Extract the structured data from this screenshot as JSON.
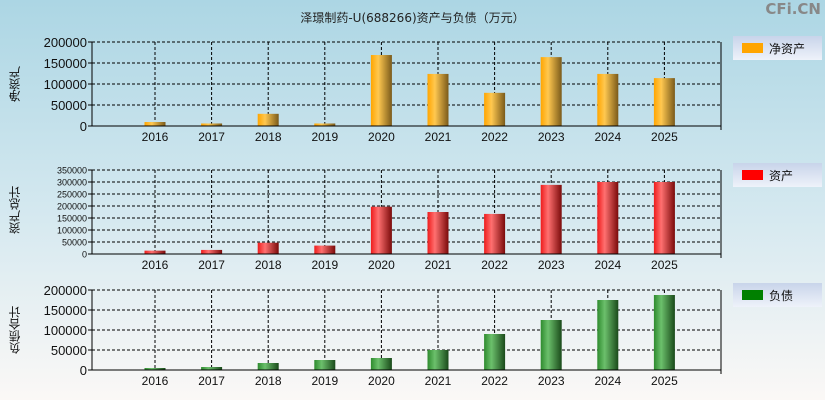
{
  "title": "泽璟制药-U(688266)资产与负债（万元）",
  "watermark": "CFi.CN",
  "chart_data": [
    {
      "type": "bar",
      "ylabel": "净资产",
      "legend": "净资产",
      "color": "#ffa500",
      "categories": [
        "2016",
        "2017",
        "2018",
        "2019",
        "2020",
        "2021",
        "2022",
        "2023",
        "2024",
        "2025"
      ],
      "values": [
        9500,
        6000,
        29000,
        6000,
        169000,
        124000,
        79000,
        164000,
        124000,
        114000
      ],
      "ylim": [
        0,
        200000
      ],
      "yticks": [
        "0",
        "50000",
        "100000",
        "150000",
        "200000"
      ],
      "grid": true,
      "legend_position": "right"
    },
    {
      "type": "bar",
      "ylabel": "资产总计",
      "legend": "资产",
      "color": "#ff0000",
      "categories": [
        "2016",
        "2017",
        "2018",
        "2019",
        "2020",
        "2021",
        "2022",
        "2023",
        "2024",
        "2025"
      ],
      "values": [
        14000,
        17000,
        47000,
        35000,
        197000,
        175000,
        167000,
        288000,
        300000,
        300000
      ],
      "ylim": [
        0,
        350000
      ],
      "yticks": [
        "0",
        "50000",
        "100000",
        "150000",
        "200000",
        "250000",
        "300000",
        "350000"
      ],
      "grid": true,
      "legend_position": "right"
    },
    {
      "type": "bar",
      "ylabel": "负债合计",
      "legend": "负债",
      "color": "#008000",
      "categories": [
        "2016",
        "2017",
        "2018",
        "2019",
        "2020",
        "2021",
        "2022",
        "2023",
        "2024",
        "2025"
      ],
      "values": [
        5000,
        7500,
        17500,
        25000,
        30000,
        50000,
        90000,
        125000,
        175000,
        187500
      ],
      "ylim": [
        0,
        200000
      ],
      "yticks": [
        "0",
        "50000",
        "100000",
        "150000",
        "200000"
      ],
      "grid": true,
      "legend_position": "right"
    }
  ]
}
